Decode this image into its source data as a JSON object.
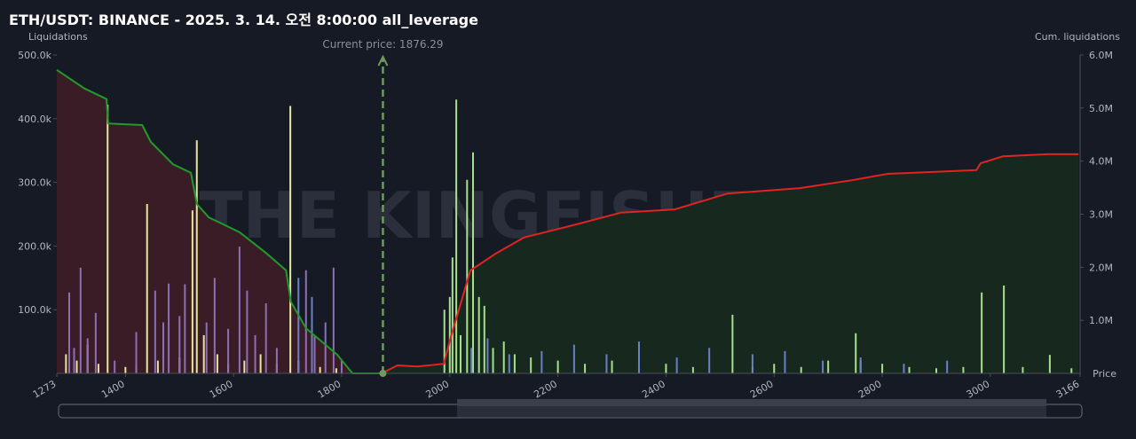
{
  "chart_data": {
    "type": "liquidation",
    "title": "ETH/USDT: BINANCE - 2025. 3. 14. 오전 8:00:00 all_leverage",
    "y_label": "Liquidations",
    "y2_label": "Cum. liquidations",
    "x_label": "Price",
    "watermark": "THE KINGFISHER.io",
    "current_price": {
      "value": 1876.29,
      "label": "Current price: 1876.29"
    },
    "xlim": [
      1273,
      3166
    ],
    "xticks": [
      1273,
      1400,
      1600,
      1800,
      2000,
      2200,
      2400,
      2600,
      2800,
      3000,
      3166
    ],
    "ylim": [
      0,
      500000
    ],
    "yticks": [
      {
        "value": 100000,
        "label": "100.0k"
      },
      {
        "value": 200000,
        "label": "200.0k"
      },
      {
        "value": 300000,
        "label": "300.0k"
      },
      {
        "value": 400000,
        "label": "400.0k"
      },
      {
        "value": 500000,
        "label": "500.0k"
      }
    ],
    "y2lim": [
      0,
      6000000
    ],
    "y2ticks": [
      {
        "value": 1000000,
        "label": "1.0M"
      },
      {
        "value": 2000000,
        "label": "2.0M"
      },
      {
        "value": 3000000,
        "label": "3.0M"
      },
      {
        "value": 4000000,
        "label": "4.0M"
      },
      {
        "value": 5000000,
        "label": "5.0M"
      },
      {
        "value": 6000000,
        "label": "6.0M"
      }
    ],
    "bars": [
      {
        "color": "#e6e79c",
        "x": [
          1290,
          1310,
          1330,
          1350,
          1367,
          1400,
          1420,
          1440,
          1460,
          1500,
          1524,
          1532,
          1545,
          1570,
          1590,
          1620,
          1650,
          1680,
          1705,
          1720,
          1760,
          1790
        ],
        "values": [
          30000,
          20000,
          45000,
          15000,
          422000,
          10000,
          12000,
          266000,
          20000,
          25000,
          256000,
          366000,
          60000,
          30000,
          15000,
          20000,
          30000,
          15000,
          420000,
          20000,
          10000,
          8000
        ]
      },
      {
        "color": "#8d6fb3",
        "x": [
          1296,
          1305,
          1317,
          1330,
          1345,
          1380,
          1420,
          1455,
          1470,
          1480,
          1500,
          1510,
          1550,
          1565,
          1590,
          1611,
          1625,
          1640,
          1660,
          1680,
          1734,
          1750,
          1770,
          1785,
          1800
        ],
        "values": [
          127000,
          40000,
          166000,
          55000,
          95000,
          20000,
          65000,
          130000,
          80000,
          141000,
          90000,
          140000,
          80000,
          150000,
          70000,
          199000,
          130000,
          60000,
          110000,
          40000,
          162000,
          60000,
          80000,
          166000,
          20000
        ]
      },
      {
        "color": "#a6e08a",
        "x": [
          1990,
          2000,
          2005,
          2012,
          2020,
          2032,
          2043,
          2054,
          2064,
          2080,
          2100,
          2120,
          2150,
          2200,
          2250,
          2300,
          2350,
          2400,
          2450,
          2523,
          2560,
          2600,
          2650,
          2700,
          2751,
          2760,
          2800,
          2850,
          2900,
          2950,
          2984,
          3025,
          3060,
          3110,
          3150
        ],
        "values": [
          100000,
          120000,
          182000,
          430000,
          60000,
          304000,
          347000,
          120000,
          106000,
          40000,
          50000,
          30000,
          25000,
          20000,
          15000,
          20000,
          12000,
          15000,
          10000,
          92000,
          10000,
          15000,
          10000,
          20000,
          63000,
          20000,
          15000,
          10000,
          8000,
          10000,
          127000,
          138000,
          10000,
          29000,
          8000
        ]
      },
      {
        "color": "#6b7fc6",
        "x": [
          1720,
          1745,
          2040,
          2070,
          2110,
          2170,
          2230,
          2290,
          2350,
          2420,
          2480,
          2560,
          2620,
          2690,
          2760,
          2840,
          2920
        ],
        "values": [
          150000,
          120000,
          40000,
          55000,
          30000,
          35000,
          45000,
          30000,
          50000,
          25000,
          40000,
          30000,
          35000,
          20000,
          25000,
          15000,
          20000
        ]
      }
    ],
    "cumulative": [
      {
        "color": "#1f9b2a",
        "fill": "#3a1c27",
        "x": [
          1273,
          1324,
          1365,
          1368,
          1431,
          1447,
          1488,
          1521,
          1532,
          1554,
          1611,
          1660,
          1697,
          1706,
          1734,
          1792,
          1820,
          1874
        ],
        "values": [
          5720000,
          5370000,
          5170000,
          4710000,
          4680000,
          4360000,
          3940000,
          3780000,
          3190000,
          2940000,
          2660000,
          2270000,
          1940000,
          1350000,
          850000,
          350000,
          0,
          0
        ]
      },
      {
        "color": "#e32222",
        "fill": "#17291f",
        "x": [
          1874,
          1903,
          1940,
          1989,
          2002,
          2014,
          2038,
          2087,
          2137,
          2235,
          2317,
          2416,
          2514,
          2646,
          2744,
          2810,
          2974,
          2982,
          3023,
          3105,
          3163
        ],
        "values": [
          0,
          150000,
          130000,
          180000,
          690000,
          1100000,
          1940000,
          2270000,
          2560000,
          2810000,
          3030000,
          3090000,
          3390000,
          3490000,
          3640000,
          3760000,
          3830000,
          3960000,
          4090000,
          4130000,
          4130000
        ]
      }
    ]
  }
}
